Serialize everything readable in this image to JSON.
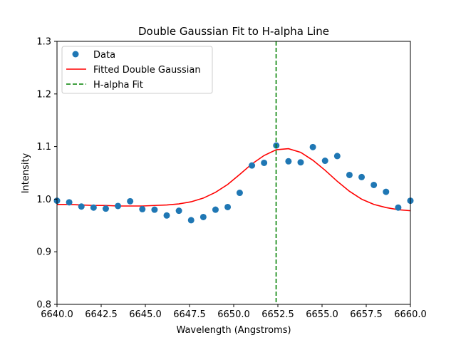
{
  "chart_data": {
    "type": "scatter",
    "title": "Double Gaussian Fit to H-alpha Line",
    "xlabel": "Wavelength (Angstroms)",
    "ylabel": "Intensity",
    "xlim": [
      6640.0,
      6660.0
    ],
    "ylim": [
      0.8,
      1.3
    ],
    "x_ticks": [
      6640.0,
      6642.5,
      6645.0,
      6647.5,
      6650.0,
      6652.5,
      6655.0,
      6657.5,
      6660.0
    ],
    "x_tick_labels": [
      "6640.0",
      "6642.5",
      "6645.0",
      "6647.5",
      "6650.0",
      "6652.5",
      "6655.0",
      "6657.5",
      "6660.0"
    ],
    "y_ticks": [
      0.8,
      0.9,
      1.0,
      1.1,
      1.2,
      1.3
    ],
    "y_tick_labels": [
      "0.8",
      "0.9",
      "1.0",
      "1.1",
      "1.2",
      "1.3"
    ],
    "grid": false,
    "legend_position": "top-left",
    "series": [
      {
        "name": "Data",
        "kind": "scatter",
        "color": "#1f77b4",
        "x": [
          6640.0,
          6640.69,
          6641.38,
          6642.07,
          6642.76,
          6643.45,
          6644.14,
          6644.83,
          6645.52,
          6646.21,
          6646.9,
          6647.59,
          6648.28,
          6648.97,
          6649.66,
          6650.34,
          6651.03,
          6651.72,
          6652.41,
          6653.1,
          6653.79,
          6654.48,
          6655.17,
          6655.86,
          6656.55,
          6657.24,
          6657.93,
          6658.62,
          6659.31,
          6660.0
        ],
        "y": [
          0.997,
          0.994,
          0.986,
          0.984,
          0.982,
          0.987,
          0.996,
          0.981,
          0.98,
          0.969,
          0.978,
          0.96,
          0.966,
          0.98,
          0.985,
          1.012,
          1.064,
          1.069,
          1.102,
          1.072,
          1.07,
          1.099,
          1.073,
          1.082,
          1.046,
          1.042,
          1.027,
          1.014,
          0.984,
          0.997
        ]
      },
      {
        "name": "Fitted Double Gaussian",
        "kind": "line",
        "color": "#ff0000",
        "x": [
          6640.0,
          6640.69,
          6641.38,
          6642.07,
          6642.76,
          6643.45,
          6644.14,
          6644.83,
          6645.52,
          6646.21,
          6646.9,
          6647.59,
          6648.28,
          6648.97,
          6649.66,
          6650.34,
          6651.03,
          6651.72,
          6652.41,
          6653.1,
          6653.79,
          6654.48,
          6655.17,
          6655.86,
          6656.55,
          6657.24,
          6657.93,
          6658.62,
          6659.31,
          6660.0
        ],
        "y": [
          0.99,
          0.99,
          0.989,
          0.988,
          0.988,
          0.987,
          0.987,
          0.987,
          0.988,
          0.989,
          0.991,
          0.995,
          1.002,
          1.013,
          1.028,
          1.047,
          1.067,
          1.083,
          1.094,
          1.096,
          1.089,
          1.074,
          1.055,
          1.034,
          1.015,
          1.0,
          0.99,
          0.984,
          0.98,
          0.978
        ]
      },
      {
        "name": "H-alpha Fit",
        "kind": "vline",
        "color": "#008000",
        "x": 6652.4
      }
    ]
  }
}
